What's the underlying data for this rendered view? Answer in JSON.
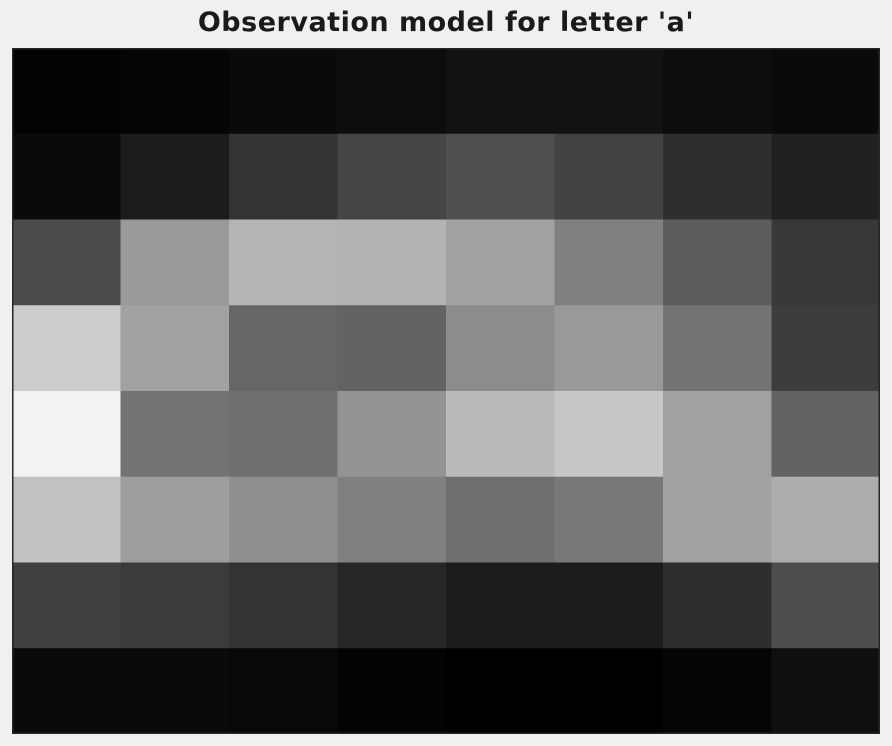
{
  "chart_data": {
    "type": "heatmap",
    "title": "Observation model for letter 'a'",
    "xlabel": "",
    "ylabel": "",
    "colormap": "gray",
    "axis_ticks": false,
    "grid": false,
    "legend": "none",
    "rows": 8,
    "cols": 8,
    "values": [
      [
        0.01,
        0.02,
        0.04,
        0.05,
        0.07,
        0.07,
        0.05,
        0.04
      ],
      [
        0.04,
        0.11,
        0.2,
        0.27,
        0.31,
        0.26,
        0.18,
        0.13
      ],
      [
        0.29,
        0.6,
        0.71,
        0.7,
        0.63,
        0.5,
        0.36,
        0.22
      ],
      [
        0.8,
        0.63,
        0.4,
        0.39,
        0.55,
        0.6,
        0.45,
        0.24
      ],
      [
        0.95,
        0.45,
        0.44,
        0.58,
        0.73,
        0.78,
        0.63,
        0.39
      ],
      [
        0.76,
        0.62,
        0.56,
        0.5,
        0.43,
        0.47,
        0.63,
        0.68
      ],
      [
        0.25,
        0.23,
        0.2,
        0.15,
        0.11,
        0.11,
        0.18,
        0.3
      ],
      [
        0.04,
        0.04,
        0.03,
        0.01,
        0.0,
        0.0,
        0.02,
        0.06
      ]
    ]
  }
}
